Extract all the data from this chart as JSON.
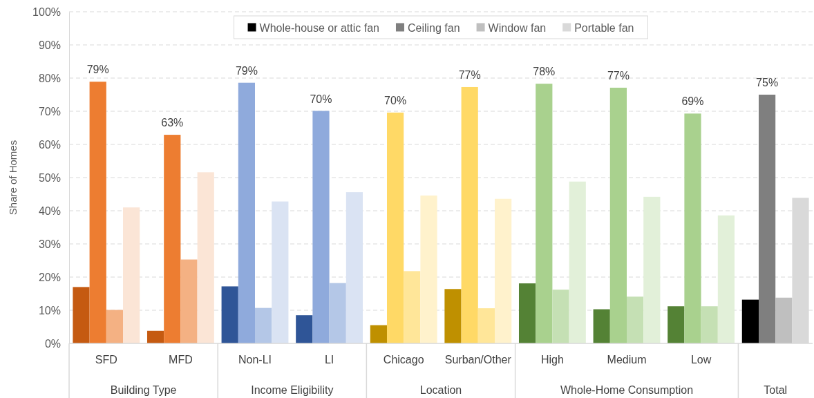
{
  "chart_data": {
    "type": "bar",
    "ylabel": "Share of Homes",
    "categories": [
      "SFD",
      "MFD",
      "Non-LI",
      "LI",
      "Chicago",
      "Surban/Other",
      "High",
      "Medium",
      "Low",
      null
    ],
    "annotations": [
      "Building Type",
      "Income Eligibility",
      "Location",
      "Whole-Home Consumption",
      "Total"
    ],
    "series": [
      {
        "name": "Whole-house or attic fan",
        "color": "#000000",
        "colors": [
          "#c55a11",
          "#c55a11",
          "#2f5597",
          "#2f5597",
          "#bf9000",
          "#bf9000",
          "#548235",
          "#548235",
          "#548235",
          "#000000"
        ],
        "values": [
          17,
          3.8,
          17.2,
          8.5,
          5.5,
          16.4,
          18.1,
          10.3,
          11.2,
          13.2
        ]
      },
      {
        "name": "Ceiling fan",
        "color": "#7f7f7f",
        "colors": [
          "#ed7d31",
          "#ed7d31",
          "#8faadc",
          "#8faadc",
          "#ffd966",
          "#ffd966",
          "#a9d18e",
          "#a9d18e",
          "#a9d18e",
          "#7f7f7f"
        ],
        "values": [
          78.9,
          62.9,
          78.6,
          70.1,
          69.6,
          77.3,
          78.3,
          77.1,
          69.3,
          75
        ],
        "value_labels": [
          "79%",
          "63%",
          "79%",
          "70%",
          "70%",
          "77%",
          "78%",
          "77%",
          "69%",
          "75%"
        ]
      },
      {
        "name": "Window fan",
        "color": "#bfbfbf",
        "colors": [
          "#f4b183",
          "#f4b183",
          "#b4c7e7",
          "#b4c7e7",
          "#ffe699",
          "#ffe699",
          "#c5e0b4",
          "#c5e0b4",
          "#c5e0b4",
          "#bfbfbf"
        ],
        "values": [
          10.1,
          25.3,
          10.7,
          18.2,
          21.8,
          10.6,
          16.2,
          14.1,
          11.2,
          13.8
        ]
      },
      {
        "name": "Portable fan",
        "color": "#d9d9d9",
        "colors": [
          "#fbe5d6",
          "#fbe5d6",
          "#dae3f3",
          "#dae3f3",
          "#fff2cc",
          "#fff2cc",
          "#e2f0d9",
          "#e2f0d9",
          "#e2f0d9",
          "#d9d9d9"
        ],
        "values": [
          41,
          51.6,
          42.8,
          45.6,
          44.6,
          43.6,
          48.8,
          44.2,
          38.6,
          43.9
        ]
      }
    ],
    "ylim": [
      0,
      100
    ],
    "yticks": [
      {
        "value": 0,
        "label": "0%"
      },
      {
        "value": 10,
        "label": "10%"
      },
      {
        "value": 20,
        "label": "20%"
      },
      {
        "value": 30,
        "label": "30%"
      },
      {
        "value": 40,
        "label": "40%"
      },
      {
        "value": 50,
        "label": "50%"
      },
      {
        "value": 60,
        "label": "60%"
      },
      {
        "value": 70,
        "label": "70%"
      },
      {
        "value": 80,
        "label": "80%"
      },
      {
        "value": 90,
        "label": "90%"
      },
      {
        "value": 100,
        "label": "100%"
      }
    ],
    "grid": "y",
    "legend": "top"
  }
}
